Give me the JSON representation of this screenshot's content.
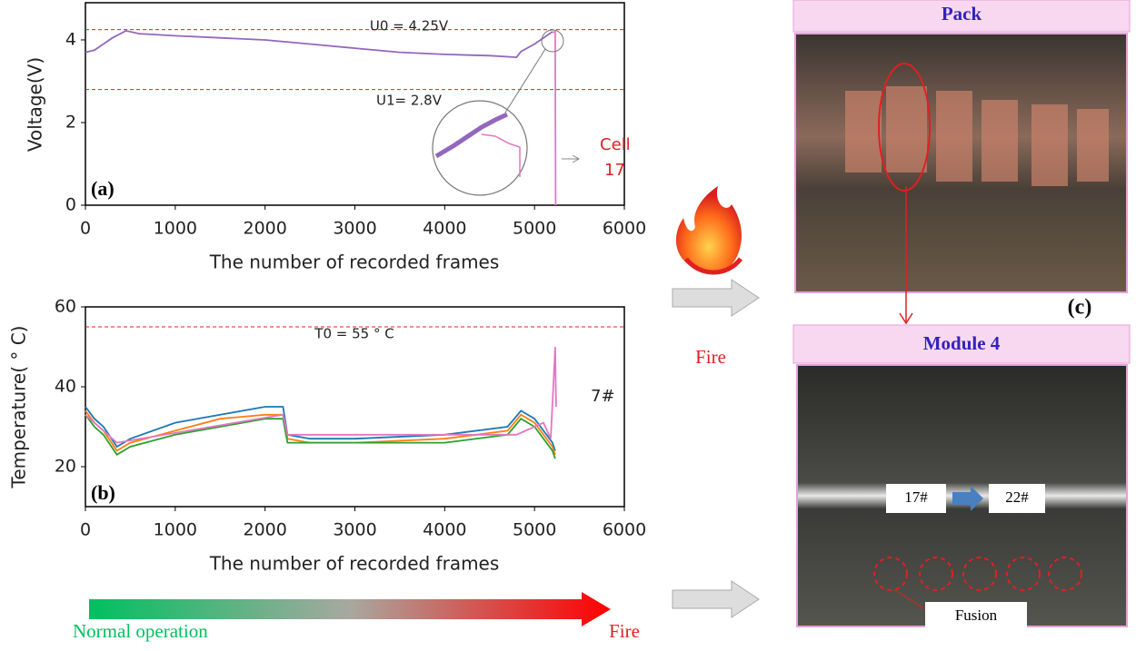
{
  "chart_data": [
    {
      "type": "line",
      "x_label": "The number of recorded frames",
      "y_label": "Voltage(V)",
      "panel_label": "(a)",
      "xlim": [
        0,
        6000
      ],
      "ylim": [
        0,
        4.9
      ],
      "xticks": [
        0,
        1000,
        2000,
        3000,
        4000,
        5000,
        6000
      ],
      "yticks": [
        0,
        2,
        4
      ],
      "hlines": [
        {
          "value": 4.25,
          "label": "U0 = 4.25V"
        },
        {
          "value": 2.8,
          "label": "U1= 2.8V"
        }
      ],
      "annotations": [
        "Cell",
        "17"
      ],
      "series": [
        {
          "color": "#9467bd",
          "x": [
            0,
            100,
            200,
            300,
            450,
            600,
            1000,
            1500,
            2000,
            2500,
            3000,
            3500,
            4000,
            4500,
            4800,
            4850,
            5000,
            5100,
            5200
          ],
          "values": [
            3.7,
            3.75,
            3.9,
            4.05,
            4.22,
            4.15,
            4.1,
            4.05,
            4.0,
            3.9,
            3.8,
            3.7,
            3.65,
            3.62,
            3.58,
            3.72,
            3.9,
            4.05,
            4.2
          ]
        },
        {
          "color": "#e377c2",
          "x": [
            5200,
            5230,
            5235
          ],
          "values": [
            4.18,
            4.2,
            0
          ]
        }
      ]
    },
    {
      "type": "line",
      "x_label": "The number of recorded frames",
      "y_label": "Temperature( ° C)",
      "panel_label": "(b)",
      "xlim": [
        0,
        6000
      ],
      "ylim": [
        10,
        60
      ],
      "xticks": [
        0,
        1000,
        2000,
        3000,
        4000,
        5000,
        6000
      ],
      "yticks": [
        20,
        40,
        60
      ],
      "hlines": [
        {
          "value": 55,
          "label": "T0 = 55 ° C"
        }
      ],
      "annotations": [
        "7#"
      ],
      "series": [
        {
          "color": "#1f77b4",
          "x": [
            0,
            100,
            200,
            350,
            500,
            1000,
            1500,
            2000,
            2200,
            2250,
            2500,
            3000,
            4000,
            4700,
            4850,
            5000,
            5200,
            5230
          ],
          "values": [
            35,
            32,
            30,
            25,
            27,
            31,
            33,
            35,
            35,
            28,
            27,
            27,
            28,
            30,
            34,
            32,
            26,
            24
          ]
        },
        {
          "color": "#ff7f0e",
          "x": [
            0,
            100,
            200,
            350,
            500,
            1000,
            1500,
            2000,
            2200,
            2250,
            2500,
            3000,
            4000,
            4700,
            4850,
            5000,
            5200,
            5230
          ],
          "values": [
            34,
            31,
            29,
            24,
            26,
            29,
            32,
            33,
            33,
            27,
            26,
            26,
            27,
            29,
            33,
            31,
            25,
            23
          ]
        },
        {
          "color": "#2ca02c",
          "x": [
            0,
            100,
            200,
            350,
            500,
            1000,
            1500,
            2000,
            2200,
            2250,
            2500,
            3000,
            4000,
            4700,
            4850,
            5000,
            5200,
            5230
          ],
          "values": [
            33,
            30,
            28,
            23,
            25,
            28,
            30,
            32,
            32,
            26,
            26,
            26,
            26,
            28,
            32,
            30,
            24,
            22
          ]
        },
        {
          "color": "#e377c2",
          "x": [
            0,
            350,
            2200,
            2250,
            4800,
            5100,
            5180,
            5220,
            5230,
            5240
          ],
          "values": [
            33,
            26,
            33,
            28,
            28,
            31,
            27,
            45,
            50,
            35
          ]
        }
      ]
    }
  ],
  "middle": {
    "fire": "Fire"
  },
  "photos": {
    "pack_title": "Pack",
    "module_title": "Module 4",
    "label": "(c)",
    "from": "17#",
    "to": "22#",
    "fusion": "Fusion"
  },
  "progress": {
    "start": "Normal operation",
    "end": "Fire"
  }
}
